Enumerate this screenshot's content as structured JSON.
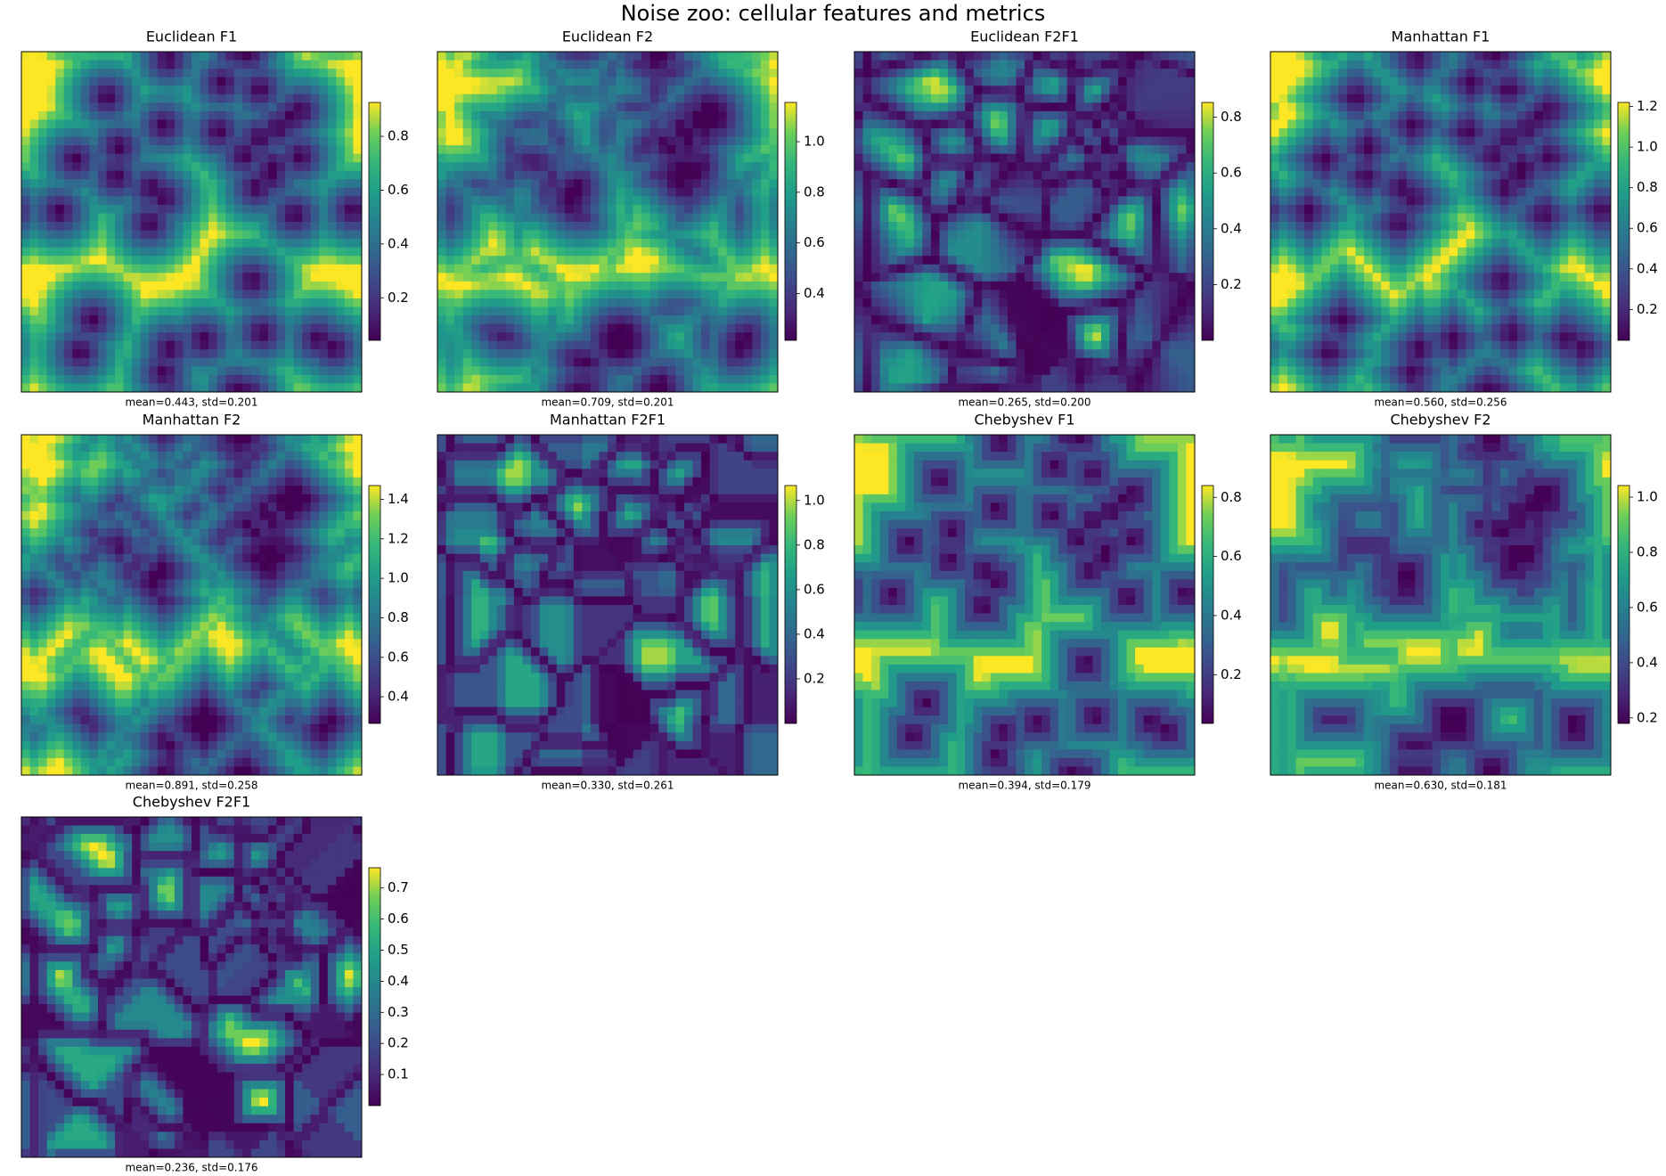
{
  "title": "Noise zoo: cellular features and metrics",
  "chart_data": [
    {
      "type": "heatmap",
      "title": "Euclidean F1",
      "annotation": "mean=0.443, std=0.201",
      "clim": [
        0.042,
        0.926
      ],
      "cticks": [
        0.2,
        0.4,
        0.6,
        0.8
      ]
    },
    {
      "type": "heatmap",
      "title": "Euclidean F2",
      "annotation": "mean=0.709, std=0.201",
      "clim": [
        0.215,
        1.155
      ],
      "cticks": [
        0.4,
        0.6,
        0.8,
        {
          "value": 1,
          "label": "1.0"
        }
      ]
    },
    {
      "type": "heatmap",
      "title": "Euclidean F2F1",
      "annotation": "mean=0.265, std=0.200",
      "clim": [
        0.0,
        0.853
      ],
      "cticks": [
        0.2,
        0.4,
        0.6,
        0.8
      ]
    },
    {
      "type": "heatmap",
      "title": "Manhattan F1",
      "annotation": "mean=0.560, std=0.256",
      "clim": [
        0.048,
        1.22
      ],
      "cticks": [
        0.2,
        0.4,
        0.6,
        0.8,
        {
          "value": 1,
          "label": "1.0"
        },
        1.2
      ]
    },
    {
      "type": "heatmap",
      "title": "Manhattan F2",
      "annotation": "mean=0.891, std=0.258",
      "clim": [
        0.265,
        1.47
      ],
      "cticks": [
        0.4,
        0.6,
        0.8,
        {
          "value": 1,
          "label": "1.0"
        },
        1.2,
        1.4
      ]
    },
    {
      "type": "heatmap",
      "title": "Manhattan F2F1",
      "annotation": "mean=0.330, std=0.261",
      "clim": [
        0.0,
        1.067
      ],
      "cticks": [
        0.2,
        0.4,
        0.6,
        0.8,
        {
          "value": 1,
          "label": "1.0"
        }
      ]
    },
    {
      "type": "heatmap",
      "title": "Chebyshev F1",
      "annotation": "mean=0.394, std=0.179",
      "clim": [
        0.035,
        0.84
      ],
      "cticks": [
        0.2,
        0.4,
        0.6,
        0.8
      ]
    },
    {
      "type": "heatmap",
      "title": "Chebyshev F2",
      "annotation": "mean=0.630, std=0.181",
      "clim": [
        0.18,
        1.042
      ],
      "cticks": [
        0.2,
        0.4,
        0.6,
        0.8,
        {
          "value": 1,
          "label": "1.0"
        }
      ]
    },
    {
      "type": "heatmap",
      "title": "Chebyshev F2F1",
      "annotation": "mean=0.236, std=0.176",
      "clim": [
        0.0,
        0.765
      ],
      "cticks": [
        0.1,
        0.2,
        0.3,
        0.4,
        0.5,
        0.6,
        0.7
      ]
    }
  ]
}
